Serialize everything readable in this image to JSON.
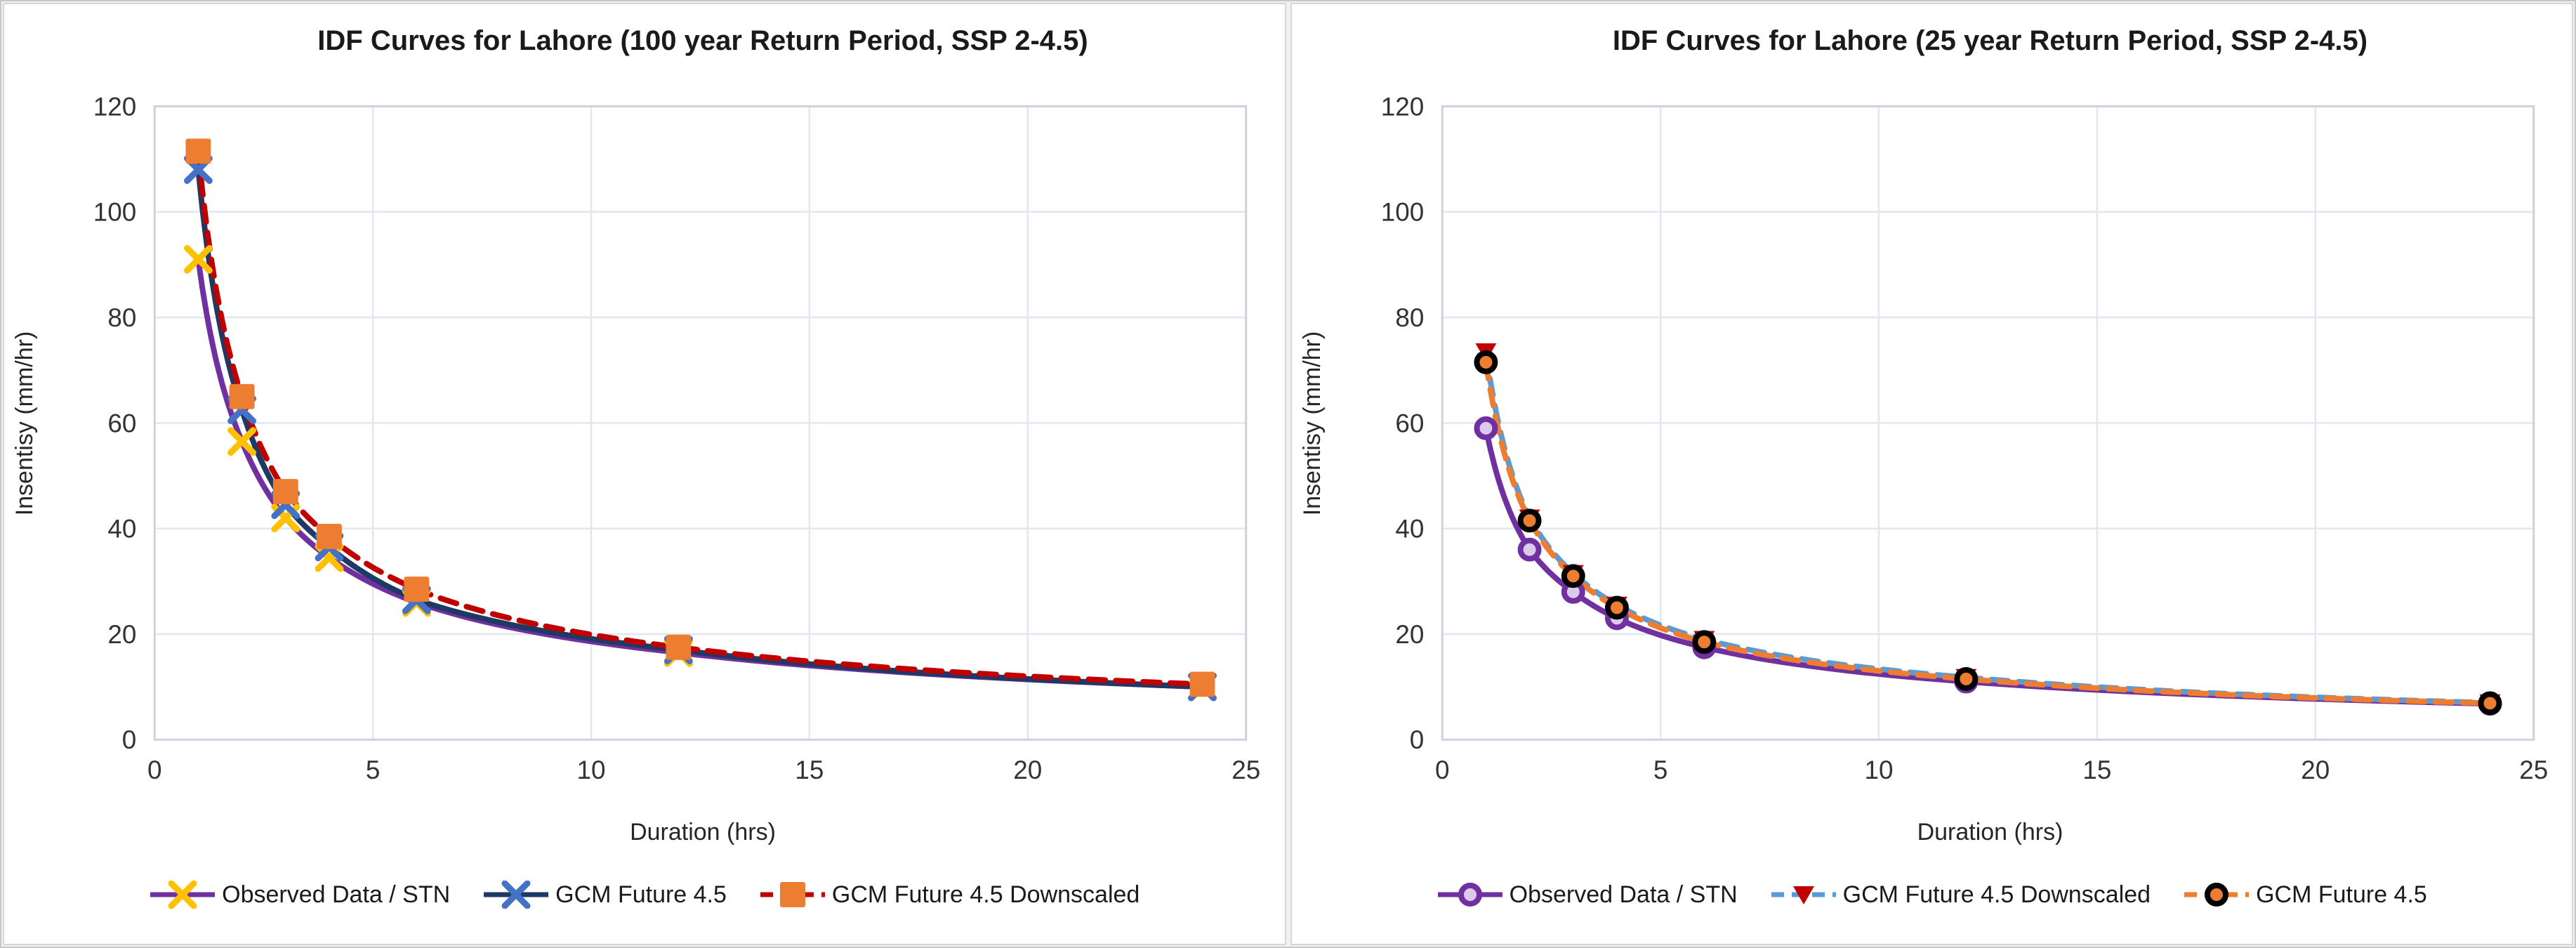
{
  "chart_data": [
    {
      "type": "line",
      "title": "IDF Curves for Lahore (100 year Return Period, SSP 2-4.5)",
      "xlabel": "Duration (hrs)",
      "ylabel": "Insentisy (mm/hr)",
      "xlim": [
        0,
        25
      ],
      "ylim": [
        0,
        120
      ],
      "x_ticks": [
        0,
        5,
        10,
        15,
        20,
        25
      ],
      "y_ticks": [
        0,
        20,
        40,
        60,
        80,
        100,
        120
      ],
      "grid": true,
      "legend_position": "bottom",
      "x": [
        1,
        2,
        3,
        4,
        6,
        12,
        24
      ],
      "series": [
        {
          "name": "Observed Data / STN",
          "values": [
            91,
            56.5,
            42,
            34.5,
            26,
            16.5,
            10
          ],
          "line_color": "#7030A0",
          "line_style": "solid",
          "marker": "x",
          "marker_color": "#FFC000"
        },
        {
          "name": "GCM Future 4.5",
          "values": [
            108,
            62.5,
            44.5,
            36.5,
            26.5,
            17,
            10
          ],
          "line_color": "#1F3864",
          "line_style": "solid",
          "marker": "x",
          "marker_color": "#4472C4"
        },
        {
          "name": "GCM Future 4.5 Downscaled",
          "values": [
            111.5,
            65,
            47,
            38.5,
            28.5,
            17.5,
            10.5
          ],
          "line_color": "#C00000",
          "line_style": "dashed",
          "marker": "square",
          "marker_color": "#ED7D31"
        }
      ]
    },
    {
      "type": "line",
      "title": "IDF Curves for Lahore (25 year Return Period, SSP 2-4.5)",
      "xlabel": "Duration (hrs)",
      "ylabel": "Insentisy (mm/hr)",
      "xlim": [
        0,
        25
      ],
      "ylim": [
        0,
        120
      ],
      "x_ticks": [
        0,
        5,
        10,
        15,
        20,
        25
      ],
      "y_ticks": [
        0,
        20,
        40,
        60,
        80,
        100,
        120
      ],
      "grid": true,
      "legend_position": "bottom",
      "x": [
        1,
        2,
        3,
        4,
        6,
        12,
        24
      ],
      "series": [
        {
          "name": "Observed Data / STN",
          "values": [
            59,
            36,
            28,
            23,
            17.5,
            11,
            6.8
          ],
          "line_color": "#7030A0",
          "line_style": "solid",
          "marker": "circle-open",
          "marker_color": "#7030A0",
          "marker_fill": "#DCC9EE"
        },
        {
          "name": "GCM Future 4.5 Downscaled",
          "values": [
            73.5,
            42,
            31.5,
            25.5,
            19,
            11.8,
            7
          ],
          "line_color": "#5B9BD5",
          "line_style": "dashed",
          "marker": "triangle-down",
          "marker_color": "#C00000"
        },
        {
          "name": "GCM Future 4.5",
          "values": [
            71.5,
            41.5,
            31,
            25,
            18.5,
            11.5,
            6.9
          ],
          "line_color": "#ED7D31",
          "line_style": "dashed",
          "marker": "circle-dot",
          "marker_color": "#000000",
          "marker_fill": "#ED7D31"
        }
      ]
    }
  ],
  "style": {
    "grid_color": "#E2E6EF",
    "plot_border_color": "#CBD2E0",
    "tick_color": "#333333"
  }
}
